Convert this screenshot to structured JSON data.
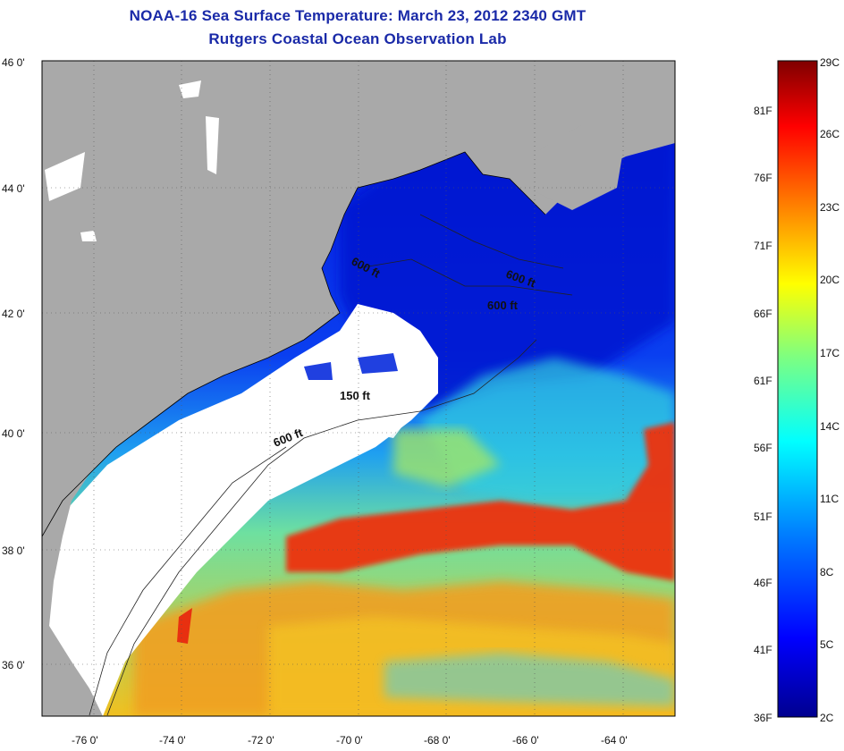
{
  "title": {
    "line1": "NOAA-16 Sea Surface Temperature:  March 23, 2012 2340 GMT",
    "line2": "Rutgers Coastal Ocean Observation Lab"
  },
  "map": {
    "lat_labels": [
      "46 0'",
      "44 0'",
      "42 0'",
      "40 0'",
      "38 0'",
      "36 0'"
    ],
    "lon_labels": [
      "-76 0'",
      "-74 0'",
      "-72 0'",
      "-70 0'",
      "-68 0'",
      "-66 0'",
      "-64 0'"
    ],
    "contour_labels": [
      "600 ft",
      "600 ft",
      "600 ft",
      "150 ft",
      "600 ft"
    ],
    "colors": {
      "land": "#a9a9a9",
      "cloud": "#ffffff",
      "coast": "#000000"
    }
  },
  "colorbar": {
    "celsius": [
      "29C",
      "26C",
      "23C",
      "20C",
      "17C",
      "14C",
      "11C",
      "8C",
      "5C",
      "2C"
    ],
    "fahrenheit": [
      "81F",
      "76F",
      "71F",
      "66F",
      "61F",
      "56F",
      "51F",
      "46F",
      "41F",
      "36F"
    ],
    "colormap": [
      "#00008f",
      "#0000ff",
      "#007fff",
      "#00ffff",
      "#7fff7f",
      "#ffff00",
      "#ff7f00",
      "#ff0000",
      "#7f0000"
    ]
  }
}
